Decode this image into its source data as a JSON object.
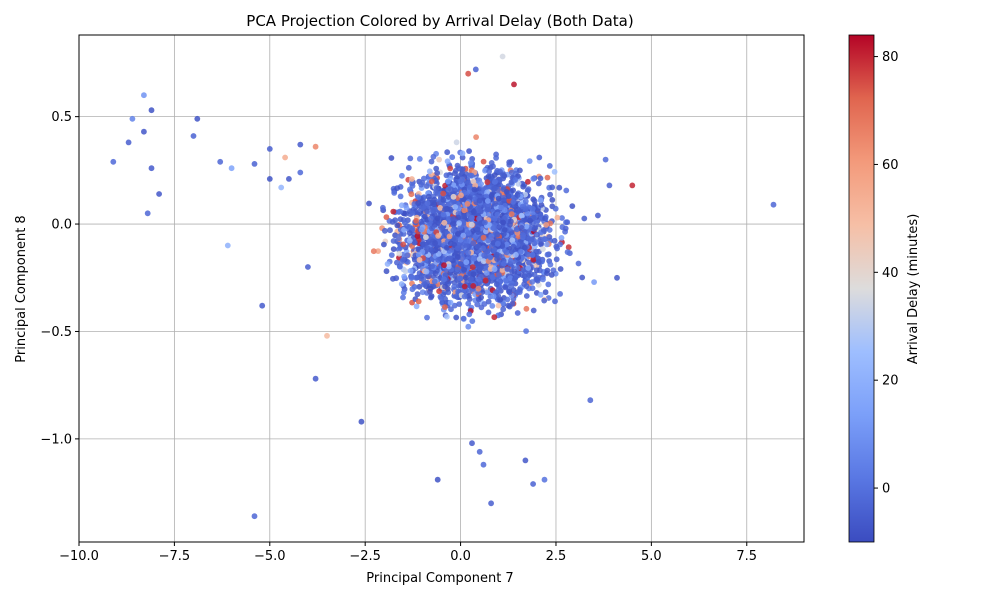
{
  "chart_data": {
    "type": "scatter",
    "title": "PCA Projection Colored by Arrival Delay (Both Data)",
    "xlabel": "Principal Component 7",
    "ylabel": "Principal Component 8",
    "xlim": [
      -10.0,
      9.0
    ],
    "ylim": [
      -1.48,
      0.88
    ],
    "xticks": [
      -10.0,
      -7.5,
      -5.0,
      -2.5,
      0.0,
      2.5,
      5.0,
      7.5
    ],
    "xtick_labels": [
      "−10.0",
      "−7.5",
      "−5.0",
      "−2.5",
      "0.0",
      "2.5",
      "5.0",
      "7.5"
    ],
    "yticks": [
      -1.0,
      -0.5,
      0.0,
      0.5
    ],
    "ytick_labels": [
      "−1.0",
      "−0.5",
      "0.0",
      "0.5"
    ],
    "grid": true,
    "colormap": "coolwarm",
    "colorbar": {
      "label": "Arrival Delay (minutes)",
      "range": [
        -10,
        84
      ],
      "ticks": [
        0,
        20,
        40,
        60,
        80
      ],
      "tick_labels": [
        "0",
        "20",
        "40",
        "60",
        "80"
      ]
    },
    "cluster": {
      "center": [
        0.4,
        -0.05
      ],
      "spread_x": 1.25,
      "spread_y": 0.2,
      "approx_points": 4000
    },
    "outliers": [
      {
        "x": -9.1,
        "y": 0.29,
        "delay": -2
      },
      {
        "x": -8.7,
        "y": 0.38,
        "delay": -5
      },
      {
        "x": -8.6,
        "y": 0.49,
        "delay": 5
      },
      {
        "x": -8.3,
        "y": 0.6,
        "delay": 10
      },
      {
        "x": -8.3,
        "y": 0.43,
        "delay": -7
      },
      {
        "x": -8.1,
        "y": 0.53,
        "delay": -8
      },
      {
        "x": -8.1,
        "y": 0.26,
        "delay": -6
      },
      {
        "x": -8.2,
        "y": 0.05,
        "delay": -3
      },
      {
        "x": -7.9,
        "y": 0.14,
        "delay": -7
      },
      {
        "x": -7.0,
        "y": 0.41,
        "delay": -4
      },
      {
        "x": -6.9,
        "y": 0.49,
        "delay": -8
      },
      {
        "x": -6.3,
        "y": 0.29,
        "delay": -3
      },
      {
        "x": -6.0,
        "y": 0.26,
        "delay": 15
      },
      {
        "x": -6.1,
        "y": -0.1,
        "delay": 20
      },
      {
        "x": -5.4,
        "y": 0.28,
        "delay": -4
      },
      {
        "x": -5.2,
        "y": -0.38,
        "delay": -6
      },
      {
        "x": -5.4,
        "y": -1.36,
        "delay": -3
      },
      {
        "x": -5.0,
        "y": 0.21,
        "delay": -8
      },
      {
        "x": -5.0,
        "y": 0.35,
        "delay": -5
      },
      {
        "x": -4.7,
        "y": 0.17,
        "delay": 22
      },
      {
        "x": -4.6,
        "y": 0.31,
        "delay": 55
      },
      {
        "x": -4.5,
        "y": 0.21,
        "delay": -7
      },
      {
        "x": -4.2,
        "y": 0.37,
        "delay": -6
      },
      {
        "x": -4.2,
        "y": 0.24,
        "delay": -2
      },
      {
        "x": -4.0,
        "y": -0.2,
        "delay": -5
      },
      {
        "x": -3.8,
        "y": 0.36,
        "delay": 65
      },
      {
        "x": -3.8,
        "y": -0.72,
        "delay": -6
      },
      {
        "x": -3.5,
        "y": -0.52,
        "delay": 50
      },
      {
        "x": -2.6,
        "y": -0.92,
        "delay": -8
      },
      {
        "x": 3.4,
        "y": -0.82,
        "delay": -3
      },
      {
        "x": 3.5,
        "y": -0.27,
        "delay": 12
      },
      {
        "x": 3.6,
        "y": 0.04,
        "delay": -6
      },
      {
        "x": 3.8,
        "y": 0.3,
        "delay": -2
      },
      {
        "x": 3.9,
        "y": 0.18,
        "delay": -5
      },
      {
        "x": 4.1,
        "y": -0.25,
        "delay": -7
      },
      {
        "x": 4.5,
        "y": 0.18,
        "delay": 80
      },
      {
        "x": 8.2,
        "y": 0.09,
        "delay": -3
      },
      {
        "x": 1.1,
        "y": 0.78,
        "delay": 35
      },
      {
        "x": 0.2,
        "y": 0.7,
        "delay": 75
      },
      {
        "x": 0.4,
        "y": 0.72,
        "delay": -4
      },
      {
        "x": 1.4,
        "y": 0.65,
        "delay": 82
      },
      {
        "x": 0.8,
        "y": -1.3,
        "delay": -5
      },
      {
        "x": -0.6,
        "y": -1.19,
        "delay": -8
      },
      {
        "x": 0.6,
        "y": -1.12,
        "delay": -2
      },
      {
        "x": 1.7,
        "y": -1.1,
        "delay": -7
      },
      {
        "x": 1.9,
        "y": -1.21,
        "delay": -4
      },
      {
        "x": 2.2,
        "y": -1.19,
        "delay": 0
      },
      {
        "x": 0.3,
        "y": -1.02,
        "delay": -6
      },
      {
        "x": 0.5,
        "y": -1.06,
        "delay": -3
      }
    ]
  }
}
